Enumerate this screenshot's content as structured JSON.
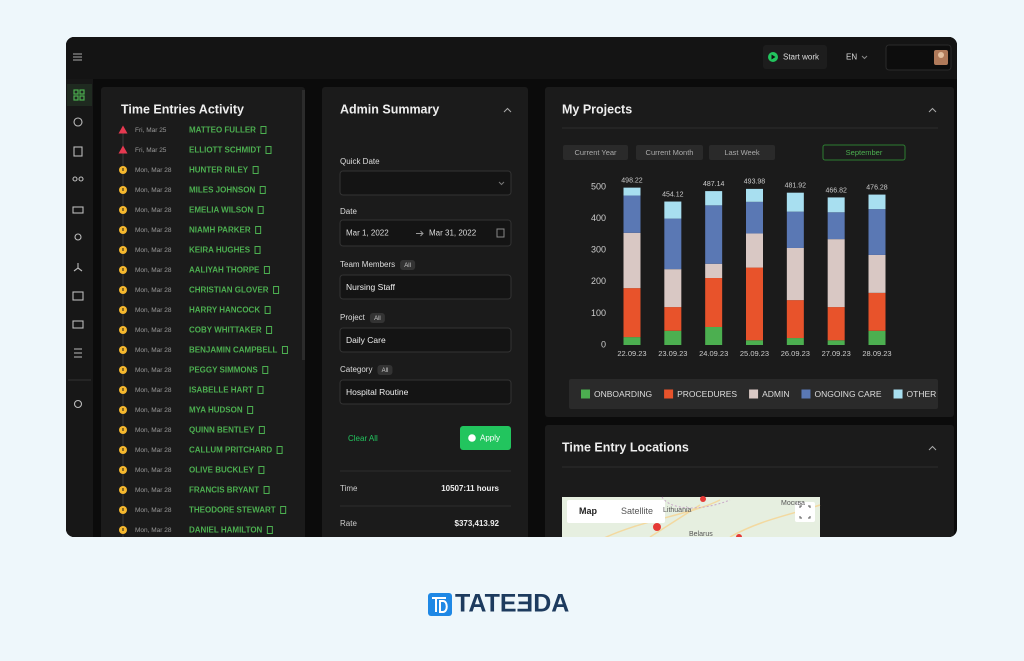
{
  "header": {
    "start_work": "Start work",
    "language": "EN"
  },
  "time_entries": {
    "title": "Time Entries Activity",
    "entries": [
      {
        "date": "Fri, Mar 25",
        "name": "MATTEO FULLER"
      },
      {
        "date": "Fri, Mar 25",
        "name": "ELLIOTT SCHMIDT"
      },
      {
        "date": "Mon, Mar 28",
        "name": "HUNTER RILEY"
      },
      {
        "date": "Mon, Mar 28",
        "name": "MILES JOHNSON"
      },
      {
        "date": "Mon, Mar 28",
        "name": "EMELIA WILSON"
      },
      {
        "date": "Mon, Mar 28",
        "name": "NIAMH PARKER"
      },
      {
        "date": "Mon, Mar 28",
        "name": "KEIRA HUGHES"
      },
      {
        "date": "Mon, Mar 28",
        "name": "AALIYAH THORPE"
      },
      {
        "date": "Mon, Mar 28",
        "name": "CHRISTIAN GLOVER"
      },
      {
        "date": "Mon, Mar 28",
        "name": "HARRY HANCOCK"
      },
      {
        "date": "Mon, Mar 28",
        "name": "COBY WHITTAKER"
      },
      {
        "date": "Mon, Mar 28",
        "name": "BENJAMIN CAMPBELL"
      },
      {
        "date": "Mon, Mar 28",
        "name": "PEGGY SIMMONS"
      },
      {
        "date": "Mon, Mar 28",
        "name": "ISABELLE HART"
      },
      {
        "date": "Mon, Mar 28",
        "name": "MYA HUDSON"
      },
      {
        "date": "Mon, Mar 28",
        "name": "QUINN BENTLEY"
      },
      {
        "date": "Mon, Mar 28",
        "name": "CALLUM PRITCHARD"
      },
      {
        "date": "Mon, Mar 28",
        "name": "OLIVE BUCKLEY"
      },
      {
        "date": "Mon, Mar 28",
        "name": "FRANCIS BRYANT"
      },
      {
        "date": "Mon, Mar 28",
        "name": "THEODORE STEWART"
      },
      {
        "date": "Mon, Mar 28",
        "name": "DANIEL HAMILTON"
      }
    ]
  },
  "admin_summary": {
    "title": "Admin Summary",
    "quick_date_label": "Quick Date",
    "date_label": "Date",
    "date_from": "Mar 1, 2022",
    "date_to": "Mar 31, 2022",
    "fields": [
      {
        "label": "Team Members",
        "badge": "All",
        "value": "Nursing Staff"
      },
      {
        "label": "Project",
        "badge": "All",
        "value": "Daily Care"
      },
      {
        "label": "Category",
        "badge": "All",
        "value": "Hospital Routine"
      }
    ],
    "clear": "Clear All",
    "apply": "Apply",
    "stats": [
      {
        "label": "Time",
        "value": "10507:11 hours"
      },
      {
        "label": "Rate",
        "value": "$373,413.92"
      }
    ]
  },
  "projects": {
    "title": "My Projects",
    "filters": [
      "Current Year",
      "Current Month",
      "Last Week",
      "September"
    ]
  },
  "chart_data": {
    "type": "bar",
    "stacked": true,
    "categories": [
      "22.09.23",
      "23.09.23",
      "24.09.23",
      "25.09.23",
      "26.09.23",
      "27.09.23",
      "28.09.23"
    ],
    "series": [
      {
        "name": "ONBOARDING",
        "color": "#4caf50",
        "values": [
          25,
          45,
          57,
          15,
          22,
          15,
          45
        ]
      },
      {
        "name": "PROCEDURES",
        "color": "#e8532b",
        "values": [
          155,
          75,
          155,
          230,
          120,
          105,
          120
        ]
      },
      {
        "name": "ADMIN",
        "color": "#d9c8c4",
        "values": [
          175,
          120,
          45,
          108,
          165,
          215,
          120
        ]
      },
      {
        "name": "ONGOING CARE",
        "color": "#5a78b4",
        "values": [
          118,
          160,
          185,
          100,
          115,
          85,
          145
        ]
      },
      {
        "name": "OTHER",
        "color": "#a8dff0",
        "values": [
          25,
          54,
          45,
          41,
          60,
          47,
          46
        ]
      }
    ],
    "totals": [
      498.22,
      454.12,
      487.14,
      493.98,
      481.92,
      466.82,
      476.28
    ],
    "ylim": [
      0,
      500
    ],
    "yticks": [
      0,
      100,
      200,
      300,
      400,
      500
    ],
    "grid": false,
    "legend": "bottom"
  },
  "locations": {
    "title": "Time Entry Locations",
    "map_button": "Map",
    "satellite_button": "Satellite",
    "places": [
      "Lithuania",
      "Belarus",
      "Москва"
    ]
  },
  "logo": "TATEƎDA"
}
